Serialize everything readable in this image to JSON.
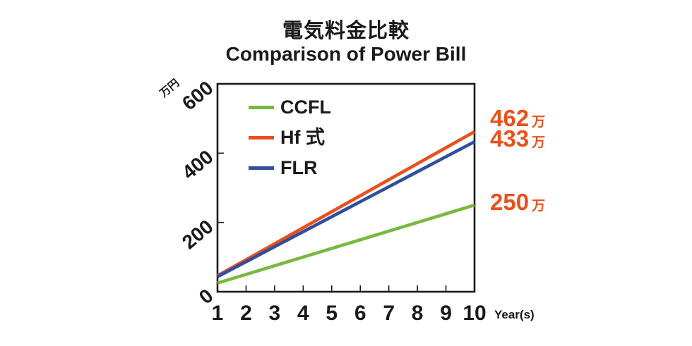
{
  "title_jp": "電気料金比較",
  "title_en": "Comparison of Power Bill",
  "colors": {
    "ccfl_green": "#79b93f",
    "hf_orange": "#e8511c",
    "flr_blue": "#2f4f9e",
    "axis_black": "#1a1a1a",
    "annotation_orange": "#e8511c"
  },
  "chart_data": {
    "type": "line",
    "title": "電気料金比較 / Comparison of Power Bill",
    "xlabel": "Year(s)",
    "ylabel": "万円",
    "x": [
      1,
      2,
      3,
      4,
      5,
      6,
      7,
      8,
      9,
      10
    ],
    "xticks": [
      1,
      2,
      3,
      4,
      5,
      6,
      7,
      8,
      9,
      10
    ],
    "yticks": [
      0,
      200,
      400,
      600
    ],
    "ylim": [
      0,
      600
    ],
    "grid": false,
    "legend_position": "top-left",
    "series": [
      {
        "name": "CCFL",
        "color": "#79b93f",
        "values": [
          25,
          50,
          75,
          100,
          125,
          150,
          175,
          200,
          225,
          250
        ]
      },
      {
        "name": "Hf 式",
        "color": "#e8511c",
        "values": [
          46.2,
          92.4,
          138.6,
          184.8,
          231,
          277.2,
          323.4,
          369.6,
          415.8,
          462
        ]
      },
      {
        "name": "FLR",
        "color": "#2f4f9e",
        "values": [
          43.3,
          86.6,
          129.9,
          173.2,
          216.5,
          259.8,
          303.1,
          346.4,
          389.7,
          433
        ]
      }
    ],
    "annotations": [
      {
        "value": "462",
        "suffix": "万",
        "series": "Hf 式",
        "color": "#e8511c"
      },
      {
        "value": "433",
        "suffix": "万",
        "series": "FLR",
        "color": "#e8511c"
      },
      {
        "value": "250",
        "suffix": "万",
        "series": "CCFL",
        "color": "#e8511c"
      }
    ]
  }
}
